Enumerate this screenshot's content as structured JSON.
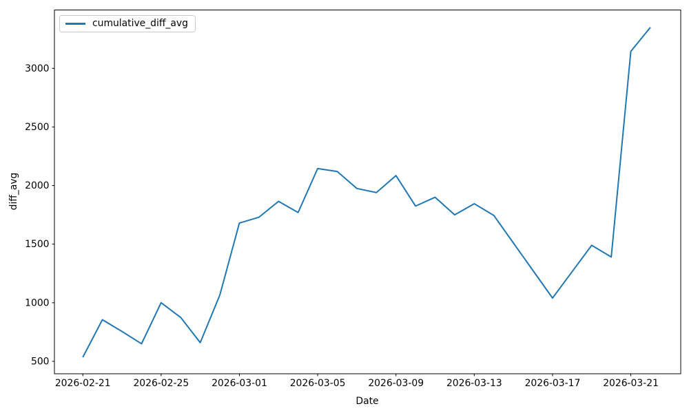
{
  "chart_data": {
    "type": "line",
    "title": "",
    "xlabel": "Date",
    "ylabel": "diff_avg",
    "grid": false,
    "legend": {
      "position": "upper-left",
      "entries": [
        "cumulative_diff_avg"
      ]
    },
    "axis_color": "#000000",
    "text_color": "#000000",
    "x": [
      "2026-02-21",
      "2026-02-22",
      "2026-02-23",
      "2026-02-24",
      "2026-02-25",
      "2026-02-26",
      "2026-02-27",
      "2026-02-28",
      "2026-03-01",
      "2026-03-02",
      "2026-03-03",
      "2026-03-04",
      "2026-03-05",
      "2026-03-06",
      "2026-03-07",
      "2026-03-08",
      "2026-03-09",
      "2026-03-10",
      "2026-03-11",
      "2026-03-12",
      "2026-03-13",
      "2026-03-14",
      "2026-03-15",
      "2026-03-16",
      "2026-03-17",
      "2026-03-18",
      "2026-03-19",
      "2026-03-20",
      "2026-03-21",
      "2026-03-22"
    ],
    "series": [
      {
        "name": "cumulative_diff_avg",
        "color": "#1f77b4",
        "values": [
          535,
          855,
          755,
          650,
          1000,
          875,
          660,
          1065,
          1680,
          1730,
          1865,
          1770,
          2145,
          2120,
          1975,
          1940,
          2085,
          1825,
          1900,
          1750,
          1845,
          1745,
          1510,
          1275,
          1040,
          1265,
          1490,
          1390,
          3145,
          3350
        ]
      }
    ],
    "x_tick_labels": [
      "2026-02-21",
      "2026-02-25",
      "2026-03-01",
      "2026-03-05",
      "2026-03-09",
      "2026-03-13",
      "2026-03-17",
      "2026-03-21"
    ],
    "y_tick_values": [
      500,
      1000,
      1500,
      2000,
      2500,
      3000
    ],
    "xlim_index": [
      -1.45,
      30.55
    ],
    "ylim": [
      394,
      3498
    ]
  }
}
